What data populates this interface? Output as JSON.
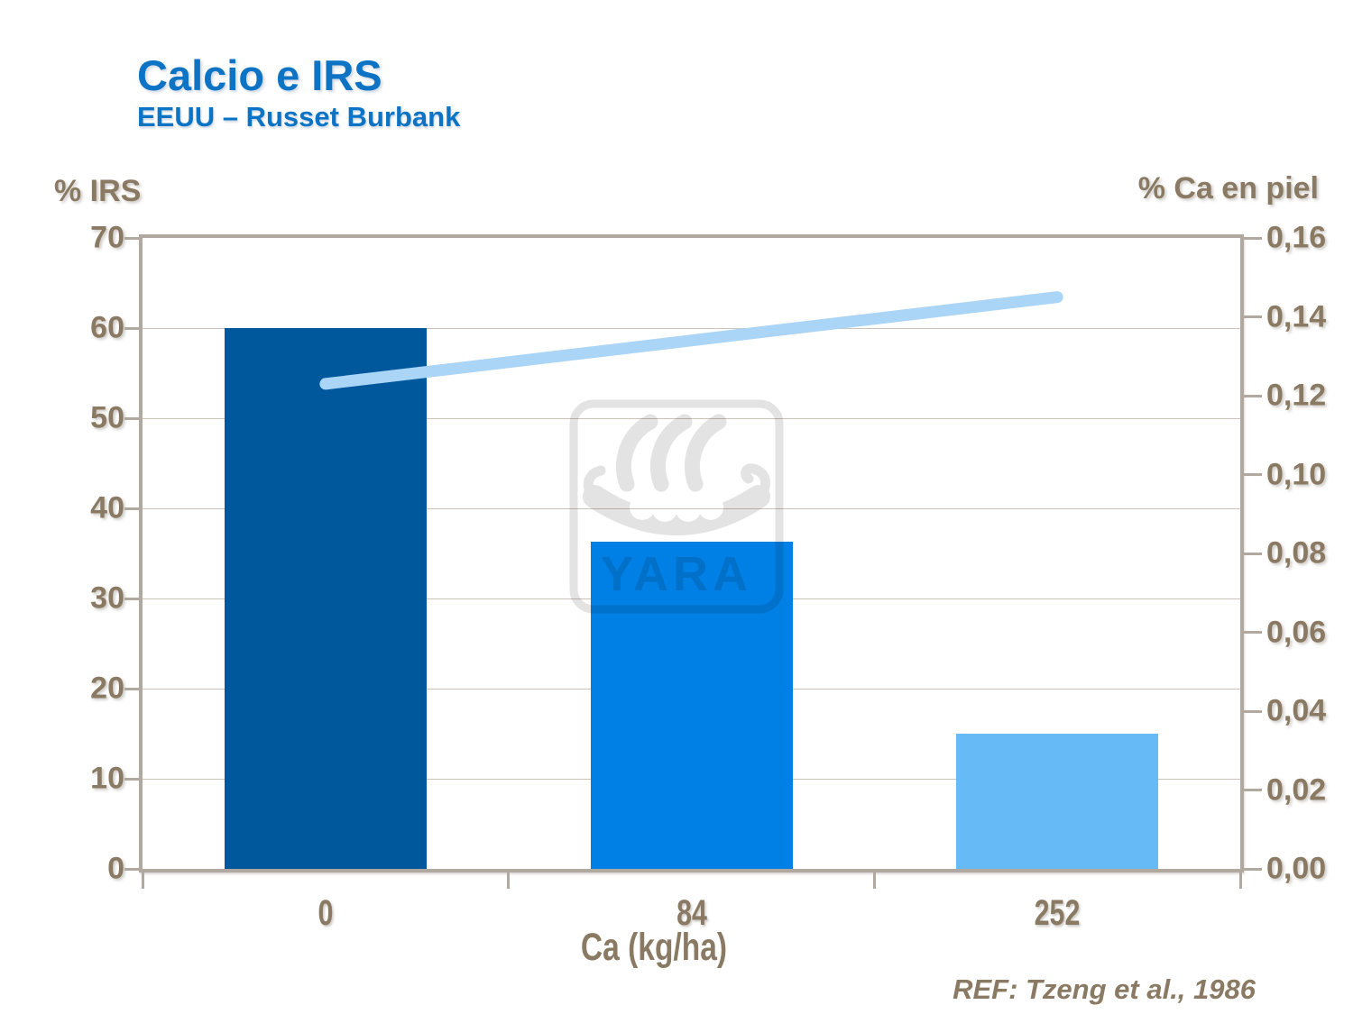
{
  "header": {
    "title": "Calcio e IRS",
    "subtitle": "EEUU – Russet Burbank"
  },
  "footer": {
    "reference": "REF: Tzeng et al., 1986"
  },
  "watermark": {
    "text": "YARA",
    "icon": "viking-ship-logo"
  },
  "colors": {
    "title_blue": "#0d73c5",
    "axis_text": "#8a7a64",
    "axis_line": "#b1a89f",
    "gridline": "#cbc3b9",
    "watermark_gray": "#e3e3e3"
  },
  "chart_data": {
    "type": "bar",
    "title": "Calcio e IRS",
    "subtitle": "EEUU – Russet Burbank",
    "categories": [
      "0",
      "84",
      "252"
    ],
    "xlabel": "Ca (kg/ha)",
    "left_axis": {
      "label": "% IRS",
      "min": 0,
      "max": 70,
      "step": 10,
      "tick_labels_top_to_bottom": [
        "70",
        "60",
        "50",
        "40",
        "30",
        "20",
        "10",
        "0"
      ]
    },
    "right_axis": {
      "label": "% Ca en piel",
      "min": 0,
      "max": 0.16,
      "step": 0.02,
      "tick_labels_top_to_bottom": [
        "0,16",
        "0,14",
        "0,12",
        "0,10",
        "0,08",
        "0,06",
        "0,04",
        "0,02",
        "0,00"
      ]
    },
    "gridlines": {
      "axis": "left",
      "values": [
        60,
        50,
        40,
        30,
        20,
        10
      ]
    },
    "series": [
      {
        "name": "% IRS",
        "type": "bar",
        "axis": "left",
        "values": [
          60,
          36.3,
          15
        ],
        "colors": [
          "#00589c",
          "#0080e5",
          "#66bbf7"
        ]
      },
      {
        "name": "% Ca en piel",
        "type": "line",
        "axis": "right",
        "values": [
          0.123,
          0.134,
          0.145
        ],
        "color": "#aad5f7",
        "stroke_width": 13
      }
    ],
    "legend": "none",
    "plot_border": true,
    "grid_on": true
  }
}
